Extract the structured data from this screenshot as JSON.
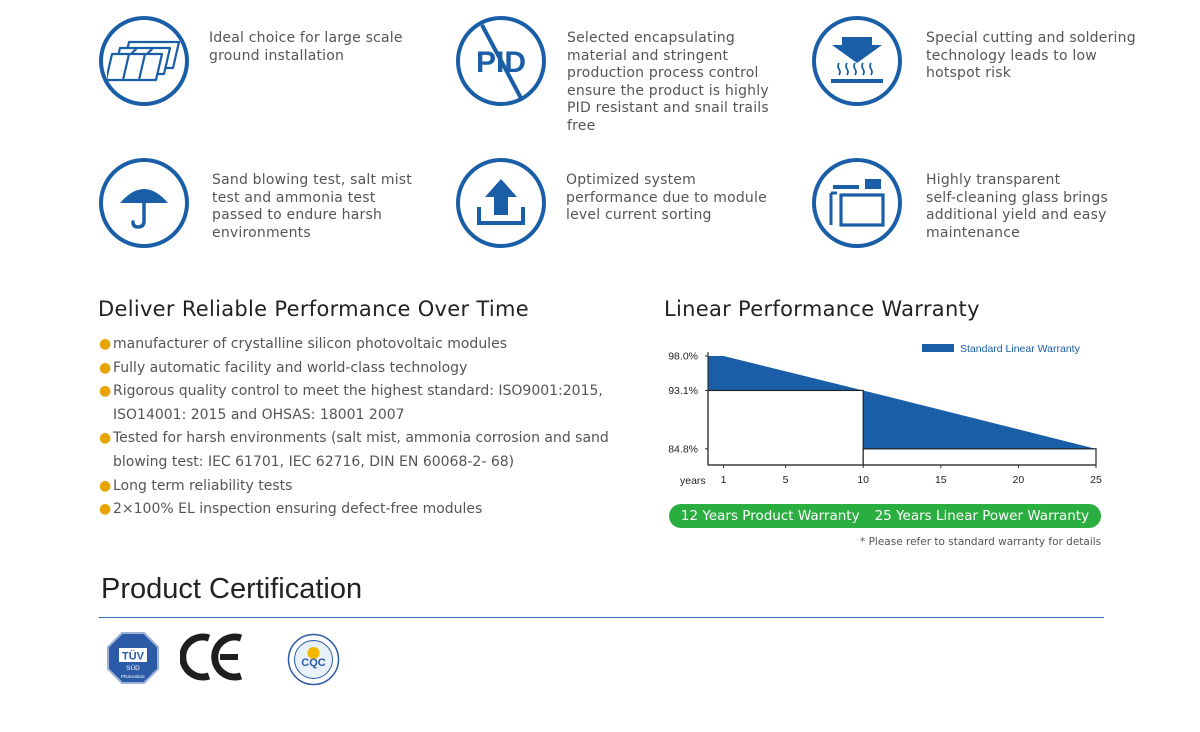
{
  "features": [
    {
      "text": "Ideal choice for large scale\nground installation",
      "icon": "solar-panels-icon"
    },
    {
      "text": "Selected encapsulating\nmaterial and stringent\nproduction process control\nensure the product is highly\nPID resistant and snail trails\nfree",
      "icon": "pid-icon",
      "icon_text": "PID"
    },
    {
      "text": "Special cutting and soldering\ntechnology leads to low\nhotspot risk",
      "icon": "heat-press-icon"
    },
    {
      "text": "Sand blowing test, salt mist\ntest and ammonia test\npassed to endure harsh\nenvironments",
      "icon": "umbrella-icon"
    },
    {
      "text": "Optimized system\nperformance due to module\nlevel current sorting",
      "icon": "upload-arrow-icon"
    },
    {
      "text": "Highly transparent\nself-cleaning glass brings\nadditional yield and easy\nmaintenance",
      "icon": "glass-panel-icon"
    }
  ],
  "performance": {
    "title": "Deliver Reliable Performance Over Time",
    "bullets": [
      "manufacturer of crystalline silicon photovoltaic modules",
      "Fully automatic facility and world-class technology",
      "Rigorous quality control to meet the highest standard: ISO9001:2015,\nISO14001: 2015 and OHSAS: 18001 2007",
      "Tested for harsh environments (salt mist, ammonia corrosion and sand\nblowing test: IEC 61701, IEC 62716, DIN EN 60068-2- 68)",
      "Long term reliability tests",
      "2×100% EL inspection ensuring defect-free modules"
    ]
  },
  "warranty": {
    "title": "Linear Performance Warranty",
    "pill_left": "12 Years Product Warranty",
    "pill_right": "25 Years Linear Power Warranty",
    "note": "* Please refer to standard warranty for details"
  },
  "chart_data": {
    "type": "area",
    "title": "Linear Performance Warranty",
    "series": [
      {
        "name": "Standard Linear Warranty",
        "x": [
          0,
          1,
          10,
          25
        ],
        "values": [
          98.0,
          98.0,
          93.1,
          84.8
        ]
      }
    ],
    "step_warranty": {
      "x": [
        0,
        10,
        10,
        25
      ],
      "values": [
        93.1,
        93.1,
        84.8,
        84.8
      ]
    },
    "y_ticks": [
      {
        "value": 98.0,
        "label": "98.0%"
      },
      {
        "value": 93.1,
        "label": "93.1%"
      },
      {
        "value": 84.8,
        "label": "84.8%"
      }
    ],
    "x_ticks": [
      1,
      5,
      10,
      15,
      20,
      25
    ],
    "xlabel": "years",
    "xlim": [
      0,
      25
    ],
    "legend_position": "top-right",
    "colors": {
      "area": "#1a5ea8",
      "axis": "#333333"
    }
  },
  "certification": {
    "title": "Product Certification",
    "logos": [
      {
        "name": "tuv-sud-logo",
        "lines": [
          "TÜV",
          "SÜD",
          "Photovoltaic"
        ]
      },
      {
        "name": "ce-mark-logo",
        "text": "CE"
      },
      {
        "name": "cqc-logo",
        "text": "CQC"
      }
    ]
  },
  "colors": {
    "brand_blue": "#1a5ea8",
    "bullet": "#e8a400",
    "pill_green": "#2aae3f"
  }
}
